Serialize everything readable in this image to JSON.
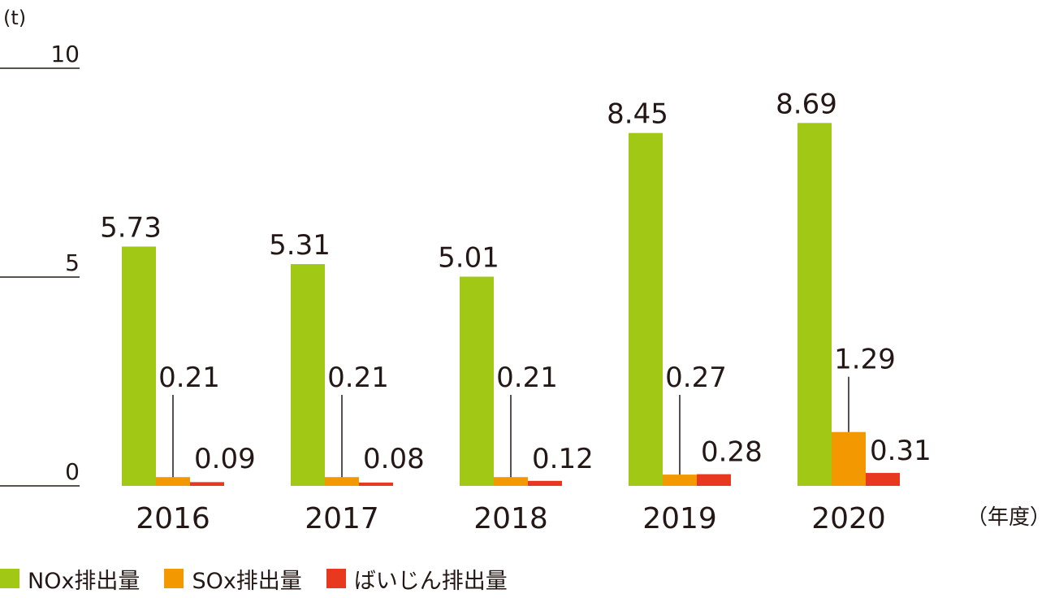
{
  "chart_data": {
    "type": "bar",
    "yunit": "(t)",
    "xunit": "（年度）",
    "ylim": [
      0,
      10
    ],
    "yticks": [
      0,
      5,
      10
    ],
    "categories": [
      "2016",
      "2017",
      "2018",
      "2019",
      "2020"
    ],
    "series": [
      {
        "name": "NOx排出量",
        "color": "#a0c814",
        "values": [
          5.73,
          5.31,
          5.01,
          8.45,
          8.69
        ],
        "labels": [
          "5.73",
          "5.31",
          "5.01",
          "8.45",
          "8.69"
        ]
      },
      {
        "name": "SOx排出量",
        "color": "#f39800",
        "values": [
          0.21,
          0.21,
          0.21,
          0.27,
          1.29
        ],
        "labels": [
          "0.21",
          "0.21",
          "0.21",
          "0.27",
          "1.29"
        ]
      },
      {
        "name": "ばいじん排出量",
        "color": "#e83820",
        "values": [
          0.09,
          0.08,
          0.12,
          0.28,
          0.31
        ],
        "labels": [
          "0.09",
          "0.08",
          "0.12",
          "0.28",
          "0.31"
        ]
      }
    ]
  }
}
